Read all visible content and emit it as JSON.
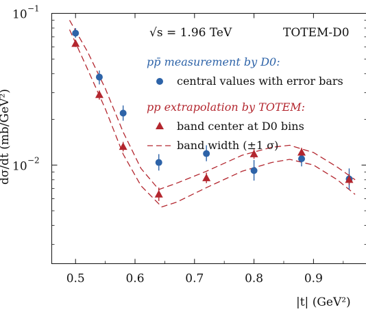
{
  "chart_data": {
    "type": "scatter",
    "x_ticks": [
      "0.5",
      "0.6",
      "0.7",
      "0.8",
      "0.9"
    ],
    "x_tick_values": [
      0.5,
      0.6,
      0.7,
      0.8,
      0.9
    ],
    "y_ticks": [
      "10",
      "10"
    ],
    "y_tick_exponents": [
      "−1",
      "−2"
    ],
    "y_tick_values": [
      0.1,
      0.01
    ],
    "xlim": [
      0.46,
      0.99
    ],
    "ylim_log10": [
      -2.65,
      -1.0
    ],
    "y_scale": "log",
    "xlabel": "|t|   (GeV²)",
    "ylabel": "dσ/dt   (mb/GeV²)",
    "annotation_energy": "√s = 1.96 TeV",
    "annotation_experiment": "TOTEM-D0",
    "legend": {
      "d0_title": "pp̄ measurement by D0:",
      "d0_entry": "central values with error bars",
      "totem_title": "pp extrapolation by TOTEM:",
      "totem_marker_entry": "band center at D0 bins",
      "totem_band_entry": "band width (±1 σ)"
    },
    "colors": {
      "d0": "#2d63a8",
      "totem": "#b3262e"
    },
    "series": [
      {
        "name": "central values with error bars",
        "marker": "circle",
        "points": [
          {
            "x": 0.5,
            "y": 0.074,
            "lo": 0.069,
            "hi": 0.08
          },
          {
            "x": 0.54,
            "y": 0.038,
            "lo": 0.034,
            "hi": 0.042
          },
          {
            "x": 0.58,
            "y": 0.022,
            "lo": 0.0196,
            "hi": 0.0247
          },
          {
            "x": 0.64,
            "y": 0.0104,
            "lo": 0.0092,
            "hi": 0.0118
          },
          {
            "x": 0.72,
            "y": 0.0119,
            "lo": 0.0106,
            "hi": 0.0135
          },
          {
            "x": 0.8,
            "y": 0.0092,
            "lo": 0.0079,
            "hi": 0.0108
          },
          {
            "x": 0.88,
            "y": 0.011,
            "lo": 0.0098,
            "hi": 0.0124
          },
          {
            "x": 0.96,
            "y": 0.0081,
            "lo": 0.0069,
            "hi": 0.0095
          }
        ]
      },
      {
        "name": "band center at D0 bins",
        "marker": "triangle",
        "points": [
          {
            "x": 0.5,
            "y": 0.063,
            "lo": 0.06,
            "hi": 0.067
          },
          {
            "x": 0.54,
            "y": 0.029,
            "lo": 0.027,
            "hi": 0.031
          },
          {
            "x": 0.58,
            "y": 0.0132,
            "lo": 0.0123,
            "hi": 0.0142
          },
          {
            "x": 0.64,
            "y": 0.0064,
            "lo": 0.0058,
            "hi": 0.0071
          },
          {
            "x": 0.72,
            "y": 0.0082,
            "lo": 0.0076,
            "hi": 0.0089
          },
          {
            "x": 0.8,
            "y": 0.0118,
            "lo": 0.011,
            "hi": 0.0127
          },
          {
            "x": 0.88,
            "y": 0.0121,
            "lo": 0.0113,
            "hi": 0.013
          },
          {
            "x": 0.96,
            "y": 0.008,
            "lo": 0.0074,
            "hi": 0.0087
          }
        ]
      }
    ],
    "band": {
      "name": "band width (±1 σ)",
      "upper": [
        {
          "x": 0.49,
          "y": 0.09
        },
        {
          "x": 0.52,
          "y": 0.056
        },
        {
          "x": 0.55,
          "y": 0.032
        },
        {
          "x": 0.58,
          "y": 0.0165
        },
        {
          "x": 0.61,
          "y": 0.0095
        },
        {
          "x": 0.64,
          "y": 0.0069
        },
        {
          "x": 0.67,
          "y": 0.0076
        },
        {
          "x": 0.72,
          "y": 0.0091
        },
        {
          "x": 0.78,
          "y": 0.0116
        },
        {
          "x": 0.83,
          "y": 0.0131
        },
        {
          "x": 0.86,
          "y": 0.0135
        },
        {
          "x": 0.9,
          "y": 0.0121
        },
        {
          "x": 0.94,
          "y": 0.0097
        },
        {
          "x": 0.97,
          "y": 0.008
        }
      ],
      "lower": [
        {
          "x": 0.49,
          "y": 0.078
        },
        {
          "x": 0.52,
          "y": 0.043
        },
        {
          "x": 0.55,
          "y": 0.0235
        },
        {
          "x": 0.58,
          "y": 0.0118
        },
        {
          "x": 0.61,
          "y": 0.0073
        },
        {
          "x": 0.645,
          "y": 0.0053
        },
        {
          "x": 0.67,
          "y": 0.0057
        },
        {
          "x": 0.72,
          "y": 0.0071
        },
        {
          "x": 0.78,
          "y": 0.0091
        },
        {
          "x": 0.83,
          "y": 0.0104
        },
        {
          "x": 0.86,
          "y": 0.0109
        },
        {
          "x": 0.9,
          "y": 0.01
        },
        {
          "x": 0.94,
          "y": 0.008
        },
        {
          "x": 0.97,
          "y": 0.0064
        }
      ]
    }
  }
}
